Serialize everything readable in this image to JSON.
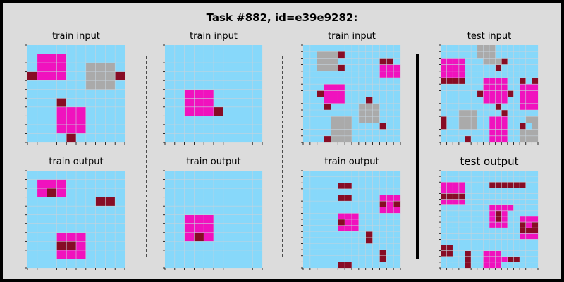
{
  "title": "Task #882, id=e39e9282:",
  "colors": {
    "0": "#87d8fa",
    "5": "#aaaaaa",
    "6": "#f012be",
    "9": "#870c25",
    "gridline": "#c6d2dc",
    "separator": "#000000"
  },
  "panels": [
    {
      "label": "train input",
      "grid": [
        "0000000000",
        "0666000000",
        "0666005550",
        "9666005559",
        "0000005550",
        "0000000000",
        "0009000000",
        "0006660000",
        "0006660000",
        "0006660000",
        "0000900000"
      ]
    },
    {
      "label": "train output",
      "grid": [
        "0000000000",
        "0666000000",
        "0696000000",
        "0000000990",
        "0000000000",
        "0000000000",
        "0000000000",
        "0006660000",
        "0009960000",
        "0006660000",
        "0000000000"
      ]
    },
    {
      "label": "train input",
      "grid": [
        "0000000000",
        "0000000000",
        "0000000000",
        "0000000000",
        "0000000000",
        "0066600000",
        "0066600000",
        "0066690000",
        "0000000000",
        "0000000000",
        "0000000000"
      ]
    },
    {
      "label": "train output",
      "grid": [
        "0000000000",
        "0000000000",
        "0000000000",
        "0000000000",
        "0000000000",
        "0066600000",
        "0066600000",
        "0069600000",
        "0000000000",
        "0000000000",
        "0000000000"
      ]
    },
    {
      "label": "train input",
      "grid": [
        "00000000000000",
        "00555900000000",
        "00555000000990",
        "00555900000666",
        "00000000000666",
        "00000000000000",
        "00066600000000",
        "00966600000000",
        "00066600090000",
        "00090000555000",
        "00000000555000",
        "00005550555000",
        "00005550000900",
        "00005550000000",
        "00095550000000"
      ]
    },
    {
      "label": "train output",
      "grid": [
        "00000000000000",
        "00000000000000",
        "00000990000000",
        "00000000000000",
        "00000990000666",
        "00000000000969",
        "00000000000666",
        "00000666000000",
        "00000966000000",
        "00000666000000",
        "00000000090000",
        "00000000090000",
        "00000000000000",
        "00000000000900",
        "00000000000900",
        "00000990000000"
      ]
    },
    {
      "label": "test input",
      "grid": [
        "0000005550000000",
        "0000005550000000",
        "6666000555900000",
        "6666000009000000",
        "6666000000000000",
        "9999000666600909",
        "0000000666600666",
        "0000009666690666",
        "0000000666600666",
        "0000000009000666",
        "0005550000900000",
        "9005550066600055",
        "9005550066600905",
        "0000000066600555",
        "0000900066600555"
      ]
    },
    {
      "label": "test output",
      "grid": [
        "0000000000000000",
        "0000000000000000",
        "6666000099999900",
        "6666000000000000",
        "9999000000000000",
        "6666000000000000",
        "0000000066660000",
        "0000000069600000",
        "0000000069600666",
        "0000000066600969",
        "0000000000000999",
        "0000000000000666",
        "0000000000000000",
        "9900000000000000",
        "9900900666000000",
        "0000900666699000",
        "0000900666000000"
      ]
    }
  ]
}
